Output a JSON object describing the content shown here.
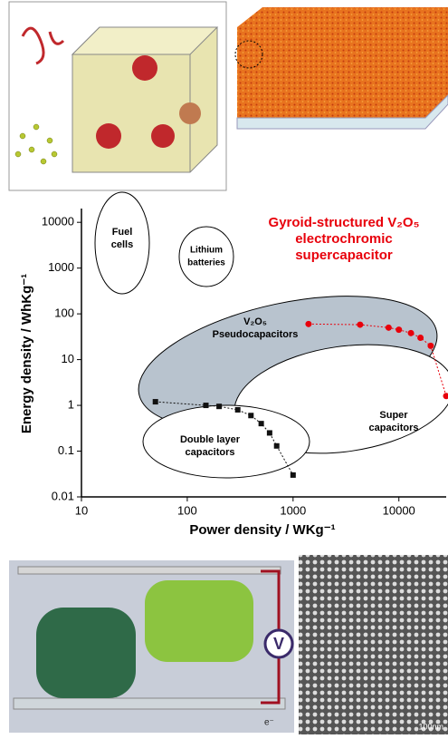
{
  "chart_data": {
    "type": "scatter",
    "annotation": [
      "Gyroid-structured V₂O₅",
      "electrochromic",
      "supercapacitor"
    ],
    "x_label": "Power density / WKg⁻¹",
    "y_label": "Energy density / WhKg⁻¹",
    "x_log": true,
    "y_log": true,
    "xlim": [
      10,
      28000
    ],
    "ylim": [
      0.01,
      20000
    ],
    "xticks": [
      10,
      100,
      1000,
      10000
    ],
    "yticks": [
      0.01,
      0.1,
      1,
      10,
      100,
      1000,
      10000
    ],
    "regions": [
      {
        "label": [
          "Fuel",
          "cells"
        ]
      },
      {
        "label": [
          "Lithium",
          "batteries"
        ]
      },
      {
        "label": [
          "V₂O₅",
          "Pseudocapacitors"
        ]
      },
      {
        "label": [
          "Super",
          "capacitors"
        ]
      },
      {
        "label": [
          "Double layer",
          "capacitors"
        ]
      }
    ],
    "series": [
      {
        "color": "#e8000b",
        "marker": "circle",
        "x": [
          1400,
          4300,
          8000,
          10000,
          13000,
          16000,
          20000,
          28000
        ],
        "values": [
          60,
          58,
          50,
          45,
          38,
          30,
          20,
          1.6
        ]
      },
      {
        "color": "#111111",
        "marker": "square",
        "x": [
          50,
          150,
          200,
          300,
          400,
          500,
          600,
          700,
          1000
        ],
        "values": [
          1.2,
          1.0,
          0.95,
          0.8,
          0.6,
          0.4,
          0.25,
          0.13,
          0.03
        ]
      }
    ]
  },
  "bottom_panel": {
    "meter": "V",
    "electron": "e⁻",
    "scale_bar": "100nm"
  }
}
